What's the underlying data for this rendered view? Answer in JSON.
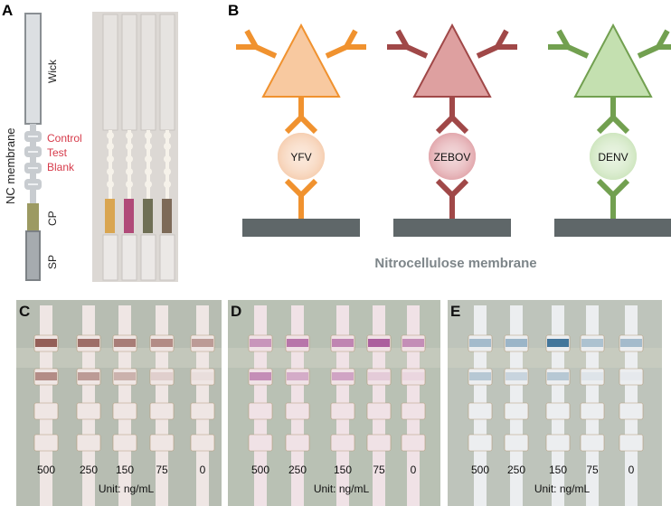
{
  "panel_letters": {
    "a": "A",
    "b": "B",
    "c": "C",
    "d": "D",
    "e": "E"
  },
  "panel_a": {
    "side_label": "NC membrane",
    "parts": {
      "wick": "Wick",
      "control": "Control",
      "test": "Test",
      "blank": "Blank",
      "cp": "CP",
      "sp": "SP"
    },
    "strip_pad_colors": [
      "#d9a550",
      "#b04a78",
      "#6f6f55",
      "#7d6a58"
    ]
  },
  "panel_b": {
    "assays": [
      {
        "label": "YFV",
        "color": "#f0922f",
        "fill": "#f8c9a0",
        "bead": "#f6cfb2"
      },
      {
        "label": "ZEBOV",
        "color": "#a04848",
        "fill": "#dea0a0",
        "bead": "#e2a8ad"
      },
      {
        "label": "DENV",
        "color": "#72a050",
        "fill": "#c4e0b0",
        "bead": "#cfe6c0"
      }
    ],
    "membrane_label": "Nitrocellulose membrane",
    "membrane_color": "#5f6769"
  },
  "concentration_panels": [
    {
      "id": "c",
      "concentrations": [
        "500",
        "250",
        "150",
        "75",
        "0"
      ],
      "unit": "Unit: ng/mL",
      "band_color": "#8a5048",
      "control_intensity": [
        0.9,
        0.8,
        0.7,
        0.6,
        0.5
      ],
      "test_intensity": [
        0.6,
        0.5,
        0.35,
        0.15,
        0.05
      ]
    },
    {
      "id": "d",
      "concentrations": [
        "500",
        "250",
        "150",
        "75",
        "0"
      ],
      "unit": "Unit: ng/mL",
      "band_color": "#a04890",
      "control_intensity": [
        0.5,
        0.7,
        0.6,
        0.85,
        0.55
      ],
      "test_intensity": [
        0.55,
        0.35,
        0.4,
        0.15,
        0.08
      ]
    },
    {
      "id": "e",
      "concentrations": [
        "500",
        "250",
        "150",
        "75",
        "0"
      ],
      "unit": "Unit: ng/mL",
      "band_color": "#3a6f96",
      "control_intensity": [
        0.4,
        0.45,
        0.95,
        0.35,
        0.4
      ],
      "test_intensity": [
        0.3,
        0.2,
        0.3,
        0.08,
        0.03
      ]
    }
  ]
}
